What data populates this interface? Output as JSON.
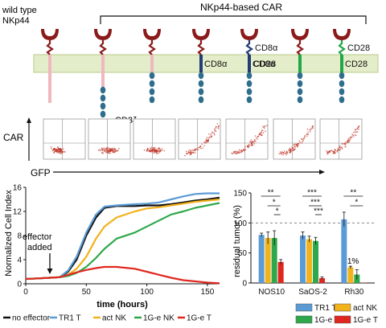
{
  "top": {
    "wildtype_label_line1": "wild type",
    "wildtype_label_line2": "NKp44",
    "car_label": "NKp44-based CAR",
    "cd3z_label": "CD3ζ",
    "cd8a_label": "CD8α",
    "cd28_label": "CD28"
  },
  "colors": {
    "nkp44_head": "#8b1a1a",
    "membrane_fill": "#e4edc9",
    "membrane_edge": "#b8c98a",
    "pink_tail": "#f0b7bd",
    "teal_bead": "#2e6e8c",
    "cd8_navy": "#223c74",
    "cd28_green": "#22a64a",
    "dots_red": "#c0392b"
  },
  "flow": {
    "ylabel": "CAR",
    "xlabel": "GFP",
    "panel_count": 7
  },
  "impedance_chart": {
    "type": "line",
    "ylabel": "Normalized Cell Index",
    "xlabel": "time (hours)",
    "xlim": [
      0,
      160
    ],
    "ylim": [
      0,
      16
    ],
    "xticks": [
      "0",
      "50",
      "100",
      "150"
    ],
    "yticks": [
      "0",
      "4",
      "8",
      "12",
      "16"
    ],
    "annotation_line1": "effector",
    "annotation_line2": "added",
    "annotation_x": 28,
    "series": [
      {
        "name": "no effector",
        "color": "#111111",
        "x": [
          0,
          10,
          20,
          28,
          35,
          42,
          50,
          58,
          65,
          75,
          90,
          100,
          110,
          120,
          130,
          140,
          150,
          160
        ],
        "y": [
          0.8,
          0.9,
          1.0,
          1.1,
          2.0,
          4.0,
          8.0,
          11.0,
          12.6,
          12.9,
          12.9,
          13.0,
          13.0,
          13.2,
          13.5,
          13.8,
          14.0,
          14.3
        ]
      },
      {
        "name": "TR1 T",
        "color": "#5b9bd5",
        "x": [
          0,
          10,
          20,
          28,
          35,
          42,
          50,
          58,
          65,
          75,
          90,
          100,
          110,
          120,
          130,
          140,
          150,
          160
        ],
        "y": [
          0.8,
          0.9,
          1.0,
          1.1,
          2.2,
          4.5,
          8.5,
          11.5,
          12.8,
          13.0,
          13.2,
          13.3,
          13.5,
          14.0,
          14.5,
          14.9,
          15.0,
          15.0
        ]
      },
      {
        "name": "act NK",
        "color": "#f2b21b",
        "x": [
          0,
          10,
          20,
          28,
          35,
          42,
          50,
          58,
          65,
          75,
          90,
          100,
          110,
          120,
          130,
          140,
          150,
          160
        ],
        "y": [
          0.8,
          0.9,
          1.0,
          1.1,
          1.5,
          2.5,
          4.5,
          7.5,
          9.5,
          11.0,
          12.0,
          12.5,
          12.7,
          13.0,
          13.3,
          13.6,
          13.8,
          14.0
        ]
      },
      {
        "name": "1G-e NK",
        "color": "#2ea84a",
        "x": [
          0,
          10,
          20,
          28,
          35,
          42,
          50,
          58,
          65,
          75,
          90,
          100,
          110,
          120,
          130,
          140,
          150,
          160
        ],
        "y": [
          0.8,
          0.9,
          1.0,
          1.1,
          1.3,
          1.8,
          2.8,
          4.3,
          5.8,
          7.5,
          8.5,
          9.5,
          10.5,
          11.5,
          12.0,
          12.6,
          13.0,
          13.4
        ]
      },
      {
        "name": "1G-e T",
        "color": "#e0271f",
        "x": [
          0,
          10,
          20,
          28,
          35,
          42,
          50,
          58,
          65,
          75,
          90,
          100,
          110,
          120,
          130,
          140,
          150,
          160
        ],
        "y": [
          0.8,
          0.9,
          1.0,
          1.1,
          1.5,
          1.9,
          2.3,
          2.6,
          2.8,
          2.8,
          2.5,
          2.0,
          1.5,
          1.0,
          0.6,
          0.4,
          0.2,
          0.1
        ]
      }
    ]
  },
  "residual_chart": {
    "type": "bar",
    "ylabel": "residual tumor (%)",
    "ylim": [
      0,
      150
    ],
    "yticks": [
      "0",
      "50",
      "100",
      "150"
    ],
    "reference_line": 100,
    "categories": [
      "NOS10",
      "SaOS-2",
      "Rh30"
    ],
    "annotation_text": "<1%",
    "series": [
      {
        "name": "TR1 T",
        "color": "#5b9bd5",
        "values": [
          80,
          79,
          106
        ],
        "errors": [
          3,
          6,
          12
        ]
      },
      {
        "name": "act NK",
        "color": "#f2b21b",
        "values": [
          75,
          73,
          26
        ],
        "errors": [
          10,
          5,
          2
        ]
      },
      {
        "name": "1G-e NK",
        "color": "#2ea84a",
        "values": [
          75,
          70,
          14
        ],
        "errors": [
          12,
          6,
          8
        ]
      },
      {
        "name": "1G-e T",
        "color": "#e0271f",
        "values": [
          35,
          8,
          0.5
        ],
        "errors": [
          4,
          2,
          0
        ]
      }
    ],
    "significance": [
      {
        "group": 0,
        "labels": [
          "**",
          "*",
          "*"
        ]
      },
      {
        "group": 1,
        "labels": [
          "***",
          "***",
          "***"
        ]
      },
      {
        "group": 2,
        "labels": [
          "**",
          "*"
        ]
      }
    ]
  }
}
